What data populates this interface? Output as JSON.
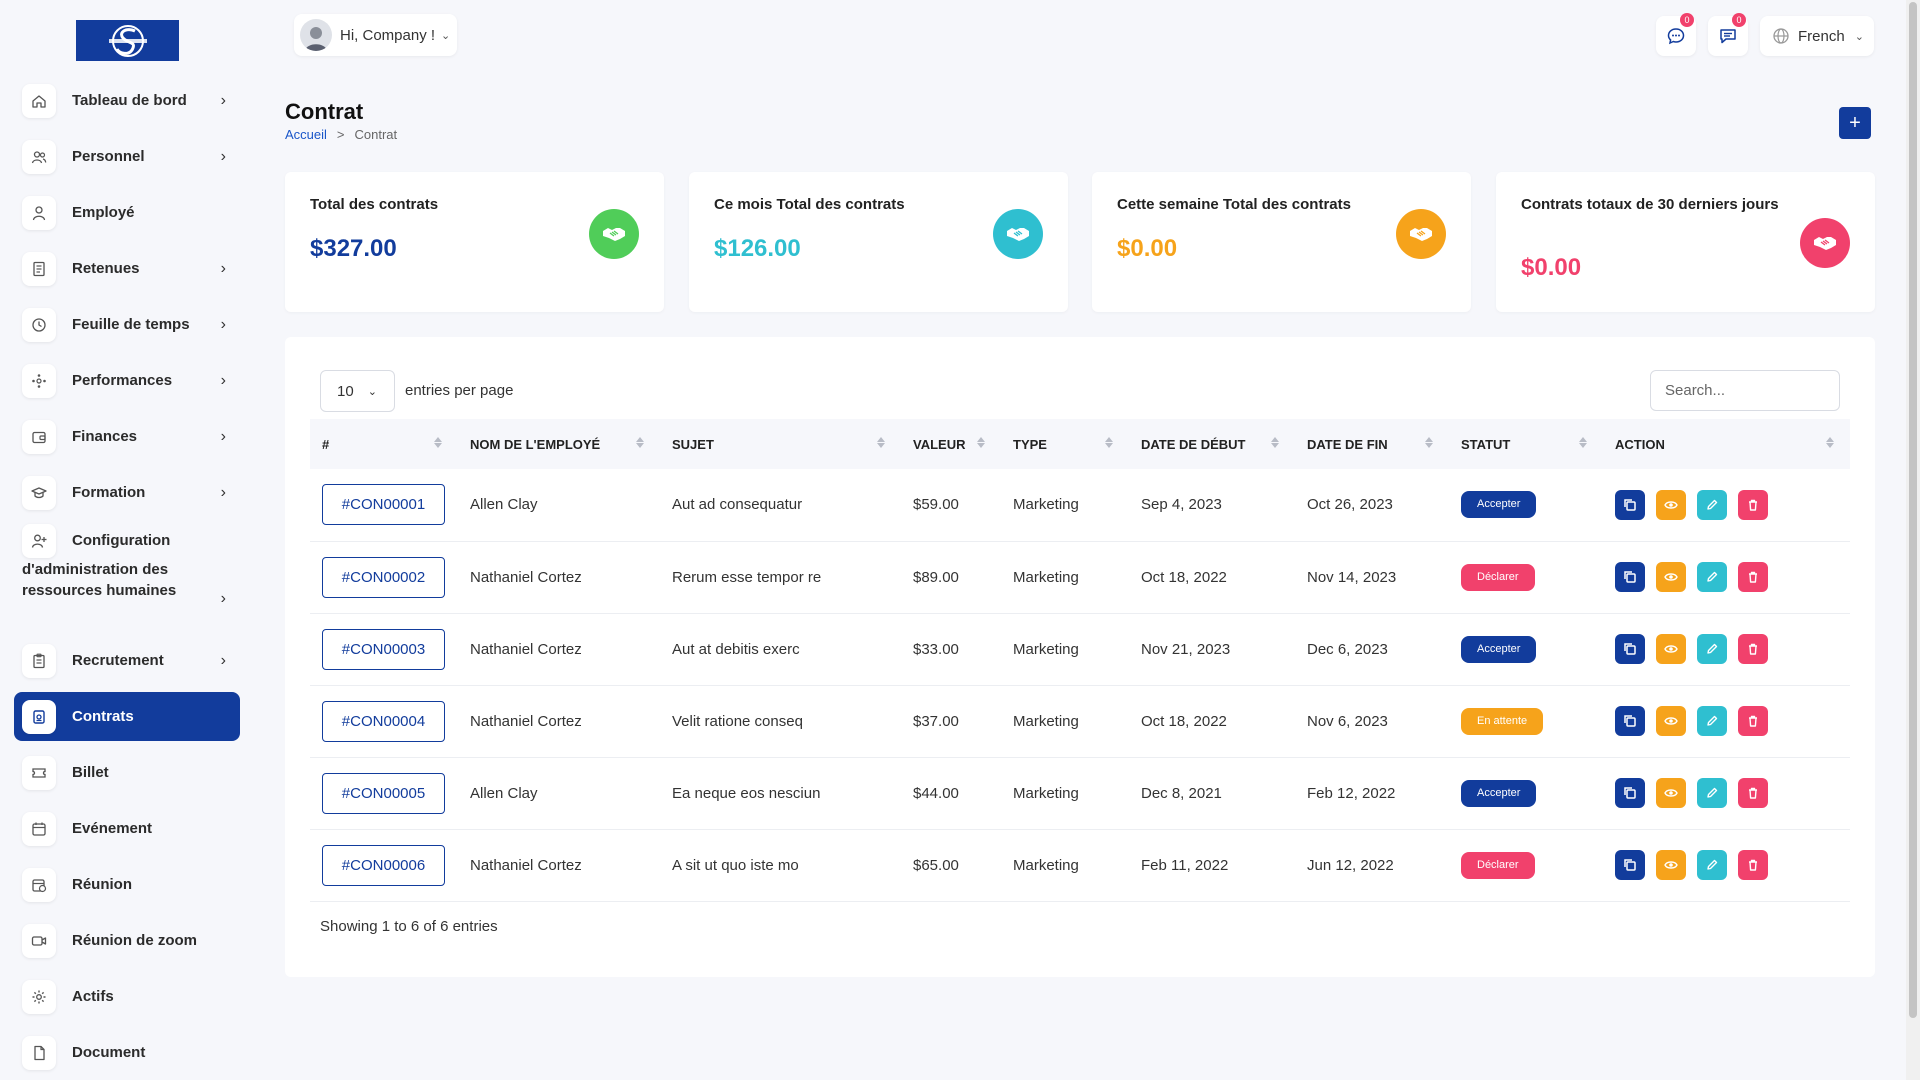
{
  "colors": {
    "brand": "#123c9c",
    "green": "#50cd59",
    "teal": "#2fbfd0",
    "orange": "#f6a31b",
    "pink": "#f1416c"
  },
  "header": {
    "greeting": "Hi, Company !",
    "language": "French",
    "chat_badge": "0",
    "messages_badge": "0"
  },
  "sidebar": {
    "items": [
      {
        "label": "Tableau de bord",
        "icon": "home-icon",
        "chevron": true
      },
      {
        "label": "Personnel",
        "icon": "users-icon",
        "chevron": true
      },
      {
        "label": "Employé",
        "icon": "user-icon",
        "chevron": false
      },
      {
        "label": "Retenues",
        "icon": "receipt-icon",
        "chevron": true
      },
      {
        "label": "Feuille de temps",
        "icon": "clock-icon",
        "chevron": true
      },
      {
        "label": "Performances",
        "icon": "performance-icon",
        "chevron": true
      },
      {
        "label": "Finances",
        "icon": "wallet-icon",
        "chevron": true
      },
      {
        "label": "Formation",
        "icon": "graduation-icon",
        "chevron": true
      },
      {
        "label": "Configuration",
        "label2": "d'administration des ressources humaines",
        "icon": "user-plus-icon",
        "chevron": true
      },
      {
        "label": "Recrutement",
        "icon": "clipboard-icon",
        "chevron": true
      },
      {
        "label": "Contrats",
        "icon": "contract-icon",
        "chevron": false,
        "active": true
      },
      {
        "label": "Billet",
        "icon": "ticket-icon",
        "chevron": false
      },
      {
        "label": "Evénement",
        "icon": "calendar-icon",
        "chevron": false
      },
      {
        "label": "Réunion",
        "icon": "calendar-clock-icon",
        "chevron": false
      },
      {
        "label": "Réunion de zoom",
        "icon": "video-icon",
        "chevron": false
      },
      {
        "label": "Actifs",
        "icon": "gear-icon",
        "chevron": false
      },
      {
        "label": "Document",
        "icon": "document-icon",
        "chevron": false
      }
    ]
  },
  "page": {
    "title": "Contrat",
    "breadcrumb_home": "Accueil",
    "breadcrumb_sep": ">",
    "breadcrumb_current": "Contrat",
    "add_label": "+"
  },
  "stats": [
    {
      "title": "Total des contrats",
      "value": "$327.00",
      "color": "#123c9c",
      "icon_color": "#50cd59"
    },
    {
      "title": "Ce mois Total des contrats",
      "value": "$126.00",
      "color": "#2fbfd0",
      "icon_color": "#2fbfd0"
    },
    {
      "title": "Cette semaine Total des contrats",
      "value": "$0.00",
      "color": "#f6a31b",
      "icon_color": "#f6a31b"
    },
    {
      "title": "Contrats totaux de 30 derniers jours",
      "value": "$0.00",
      "color": "#f1416c",
      "icon_color": "#f1416c"
    }
  ],
  "table": {
    "per_page": "10",
    "per_page_label": "entries per page",
    "search_placeholder": "Search...",
    "columns": [
      "#",
      "NOM DE L'EMPLOYÉ",
      "SUJET",
      "VALEUR",
      "TYPE",
      "DATE DE DÉBUT",
      "DATE DE FIN",
      "STATUT",
      "ACTION"
    ],
    "rows": [
      {
        "id": "#CON00001",
        "employee": "Allen Clay",
        "subject": "Aut ad consequatur",
        "value": "$59.00",
        "type": "Marketing",
        "start": "Sep 4, 2023",
        "end": "Oct 26, 2023",
        "status": "Accepter",
        "status_color": "#123c9c"
      },
      {
        "id": "#CON00002",
        "employee": "Nathaniel Cortez",
        "subject": "Rerum esse tempor re",
        "value": "$89.00",
        "type": "Marketing",
        "start": "Oct 18, 2022",
        "end": "Nov 14, 2023",
        "status": "Déclarer",
        "status_color": "#f1416c"
      },
      {
        "id": "#CON00003",
        "employee": "Nathaniel Cortez",
        "subject": "Aut at debitis exerc",
        "value": "$33.00",
        "type": "Marketing",
        "start": "Nov 21, 2023",
        "end": "Dec 6, 2023",
        "status": "Accepter",
        "status_color": "#123c9c"
      },
      {
        "id": "#CON00004",
        "employee": "Nathaniel Cortez",
        "subject": "Velit ratione conseq",
        "value": "$37.00",
        "type": "Marketing",
        "start": "Oct 18, 2022",
        "end": "Nov 6, 2023",
        "status": "En attente",
        "status_color": "#f6a31b"
      },
      {
        "id": "#CON00005",
        "employee": "Allen Clay",
        "subject": "Ea neque eos nesciun",
        "value": "$44.00",
        "type": "Marketing",
        "start": "Dec 8, 2021",
        "end": "Feb 12, 2022",
        "status": "Accepter",
        "status_color": "#123c9c"
      },
      {
        "id": "#CON00006",
        "employee": "Nathaniel Cortez",
        "subject": "A sit ut quo iste mo",
        "value": "$65.00",
        "type": "Marketing",
        "start": "Feb 11, 2022",
        "end": "Jun 12, 2022",
        "status": "Déclarer",
        "status_color": "#f1416c"
      }
    ],
    "footer": "Showing 1 to 6 of 6 entries"
  }
}
